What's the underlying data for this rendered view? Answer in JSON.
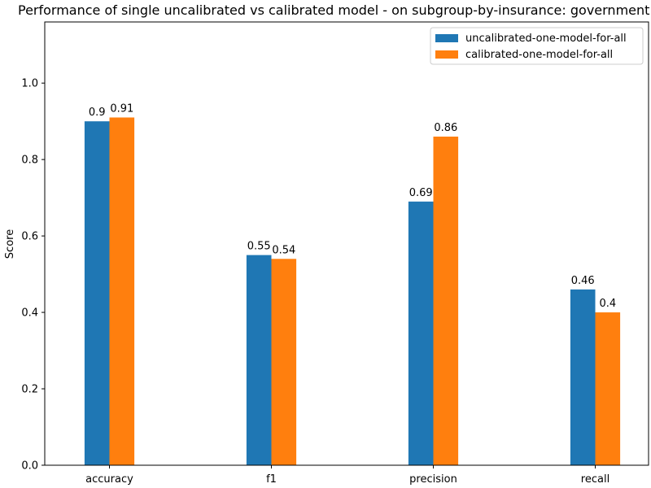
{
  "chart_data": {
    "type": "bar",
    "title": "Performance of single uncalibrated vs calibrated model - on subgroup-by-insurance: government",
    "xlabel": "",
    "ylabel": "Score",
    "categories": [
      "accuracy",
      "f1",
      "precision",
      "recall"
    ],
    "series": [
      {
        "name": "uncalibrated-one-model-for-all",
        "values": [
          0.9,
          0.55,
          0.69,
          0.46
        ],
        "color": "#1f77b4"
      },
      {
        "name": "calibrated-one-model-for-all",
        "values": [
          0.91,
          0.54,
          0.86,
          0.4
        ],
        "color": "#ff7f0e"
      }
    ],
    "ylim": [
      0,
      1.16
    ],
    "yticks": [
      0.0,
      0.2,
      0.4,
      0.6,
      0.8,
      1.0
    ],
    "ytick_labels": [
      "0.0",
      "0.2",
      "0.4",
      "0.6",
      "0.8",
      "1.0"
    ],
    "legend_position": "top-right",
    "grid": false
  }
}
